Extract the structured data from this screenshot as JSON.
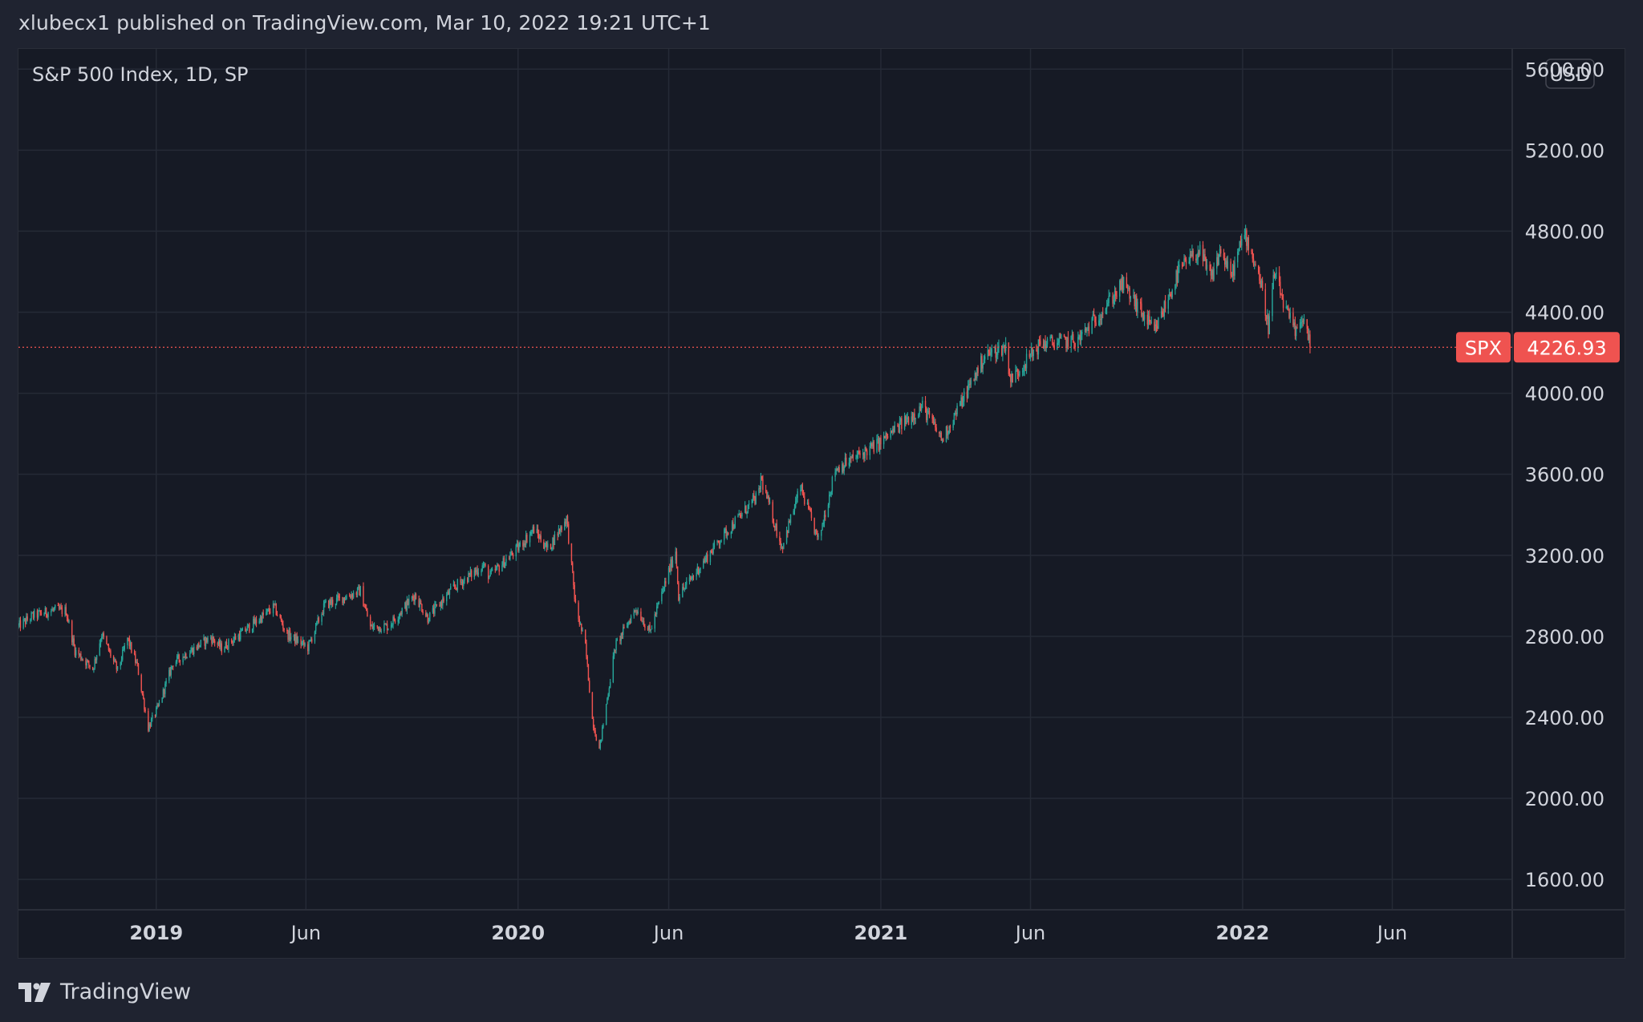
{
  "header": {
    "published_line": "xlubecx1 published on TradingView.com, Mar 10, 2022 19:21 UTC+1"
  },
  "footer": {
    "brand": "TradingView",
    "logo_icon": "tradingview-logo-icon"
  },
  "colors": {
    "background": "#161a25",
    "page": "#1f2330",
    "grid": "#252a36",
    "text": "#d1d4dc",
    "up": "#26a69a",
    "down": "#ef5350",
    "price_line": "#ef5350"
  },
  "chart_data": {
    "type": "line",
    "title": "S&P 500 Index, 1D, SP",
    "symbol": "SPX",
    "currency": "USD",
    "last_price": 4226.93,
    "last_price_label": "4226.93",
    "ylim": [
      1450,
      5700
    ],
    "y_ticks": [
      {
        "value": 1600,
        "label": "1600.00"
      },
      {
        "value": 2000,
        "label": "2000.00"
      },
      {
        "value": 2400,
        "label": "2400.00"
      },
      {
        "value": 2800,
        "label": "2800.00"
      },
      {
        "value": 3200,
        "label": "3200.00"
      },
      {
        "value": 3600,
        "label": "3600.00"
      },
      {
        "value": 4000,
        "label": "4000.00"
      },
      {
        "value": 4400,
        "label": "4400.00"
      },
      {
        "value": 4800,
        "label": "4800.00"
      },
      {
        "value": 5200,
        "label": "5200.00"
      },
      {
        "value": 5600,
        "label": "5600.00"
      }
    ],
    "xlim": [
      "2018-08-15",
      "2022-09-30"
    ],
    "x_ticks": [
      {
        "date": "2019-01-01",
        "label": "2019",
        "major": true
      },
      {
        "date": "2019-06-01",
        "label": "Jun",
        "major": false
      },
      {
        "date": "2020-01-01",
        "label": "2020",
        "major": true
      },
      {
        "date": "2020-06-01",
        "label": "Jun",
        "major": false
      },
      {
        "date": "2021-01-01",
        "label": "2021",
        "major": true
      },
      {
        "date": "2021-06-01",
        "label": "Jun",
        "major": false
      },
      {
        "date": "2022-01-01",
        "label": "2022",
        "major": true
      },
      {
        "date": "2022-06-01",
        "label": "Jun",
        "major": false
      }
    ],
    "grid": true,
    "series": [
      {
        "points": [
          [
            "2018-08-15",
            2850
          ],
          [
            "2018-08-29",
            2900
          ],
          [
            "2018-09-20",
            2930
          ],
          [
            "2018-10-02",
            2925
          ],
          [
            "2018-10-11",
            2730
          ],
          [
            "2018-10-29",
            2640
          ],
          [
            "2018-11-07",
            2810
          ],
          [
            "2018-11-23",
            2630
          ],
          [
            "2018-12-03",
            2790
          ],
          [
            "2018-12-13",
            2650
          ],
          [
            "2018-12-24",
            2350
          ],
          [
            "2019-01-03",
            2450
          ],
          [
            "2019-01-18",
            2670
          ],
          [
            "2019-02-25",
            2795
          ],
          [
            "2019-03-08",
            2740
          ],
          [
            "2019-03-28",
            2815
          ],
          [
            "2019-04-30",
            2945
          ],
          [
            "2019-05-13",
            2810
          ],
          [
            "2019-06-03",
            2745
          ],
          [
            "2019-06-20",
            2955
          ],
          [
            "2019-07-26",
            3025
          ],
          [
            "2019-08-05",
            2845
          ],
          [
            "2019-08-23",
            2850
          ],
          [
            "2019-09-19",
            3005
          ],
          [
            "2019-10-02",
            2890
          ],
          [
            "2019-10-28",
            3040
          ],
          [
            "2019-11-27",
            3150
          ],
          [
            "2019-12-03",
            3095
          ],
          [
            "2019-12-31",
            3230
          ],
          [
            "2020-01-17",
            3330
          ],
          [
            "2020-01-31",
            3230
          ],
          [
            "2020-02-19",
            3385
          ],
          [
            "2020-02-28",
            2950
          ],
          [
            "2020-03-09",
            2750
          ],
          [
            "2020-03-16",
            2390
          ],
          [
            "2020-03-23",
            2240
          ],
          [
            "2020-04-08",
            2750
          ],
          [
            "2020-04-29",
            2940
          ],
          [
            "2020-05-13",
            2820
          ],
          [
            "2020-06-08",
            3230
          ],
          [
            "2020-06-11",
            3000
          ],
          [
            "2020-07-22",
            3275
          ],
          [
            "2020-08-31",
            3500
          ],
          [
            "2020-09-02",
            3580
          ],
          [
            "2020-09-23",
            3240
          ],
          [
            "2020-10-12",
            3535
          ],
          [
            "2020-10-30",
            3270
          ],
          [
            "2020-11-16",
            3625
          ],
          [
            "2020-12-31",
            3755
          ],
          [
            "2021-02-12",
            3935
          ],
          [
            "2021-03-04",
            3770
          ],
          [
            "2021-04-16",
            4185
          ],
          [
            "2021-05-07",
            4230
          ],
          [
            "2021-05-12",
            4065
          ],
          [
            "2021-06-11",
            4245
          ],
          [
            "2021-07-19",
            4260
          ],
          [
            "2021-08-31",
            4525
          ],
          [
            "2021-09-02",
            4540
          ],
          [
            "2021-10-04",
            4300
          ],
          [
            "2021-10-29",
            4605
          ],
          [
            "2021-11-18",
            4705
          ],
          [
            "2021-11-30",
            4565
          ],
          [
            "2021-12-10",
            4710
          ],
          [
            "2021-12-20",
            4570
          ],
          [
            "2022-01-03",
            4795
          ],
          [
            "2022-01-18",
            4575
          ],
          [
            "2022-01-27",
            4330
          ],
          [
            "2022-02-02",
            4590
          ],
          [
            "2022-02-14",
            4405
          ],
          [
            "2022-02-24",
            4290
          ],
          [
            "2022-03-02",
            4385
          ],
          [
            "2022-03-09",
            4277
          ],
          [
            "2022-03-10",
            4226.93
          ]
        ]
      }
    ]
  }
}
